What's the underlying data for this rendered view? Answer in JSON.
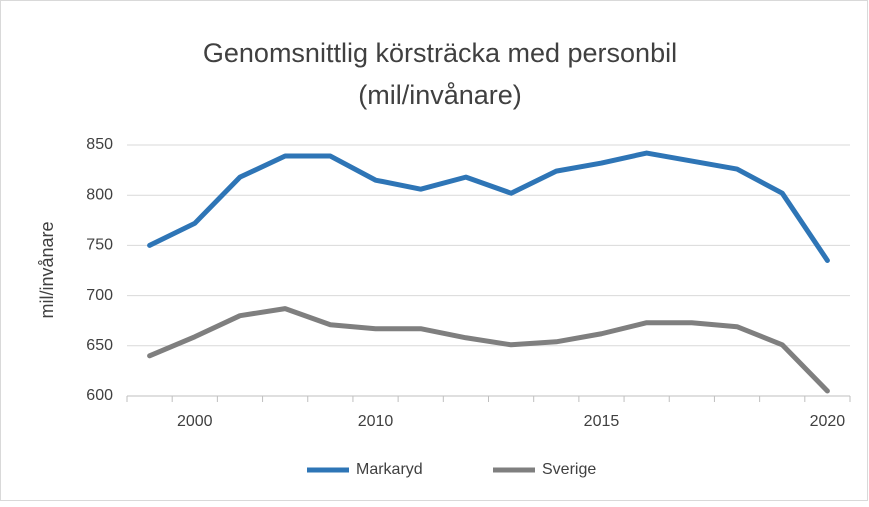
{
  "chart_data": {
    "type": "line",
    "title": [
      "Genomsnittlig körsträcka med personbil",
      "(mil/invånare)"
    ],
    "y_label": "mil/invånare",
    "categories": [
      null,
      "2000",
      null,
      null,
      null,
      "2010",
      null,
      null,
      null,
      null,
      "2015",
      null,
      null,
      null,
      null,
      "2020"
    ],
    "series": [
      {
        "name": "Markaryd",
        "color": "#2e75b6",
        "values": [
          750,
          772,
          818,
          839,
          839,
          815,
          806,
          818,
          802,
          824,
          832,
          842,
          834,
          826,
          802,
          735
        ]
      },
      {
        "name": "Sverige",
        "color": "#7f7f7f",
        "values": [
          640,
          659,
          680,
          687,
          671,
          667,
          667,
          658,
          651,
          654,
          662,
          673,
          673,
          669,
          651,
          605
        ]
      }
    ],
    "ylim": [
      600,
      850
    ],
    "yticks": [
      600,
      650,
      700,
      750,
      800,
      850
    ],
    "grid": true,
    "legend": "bottom"
  }
}
